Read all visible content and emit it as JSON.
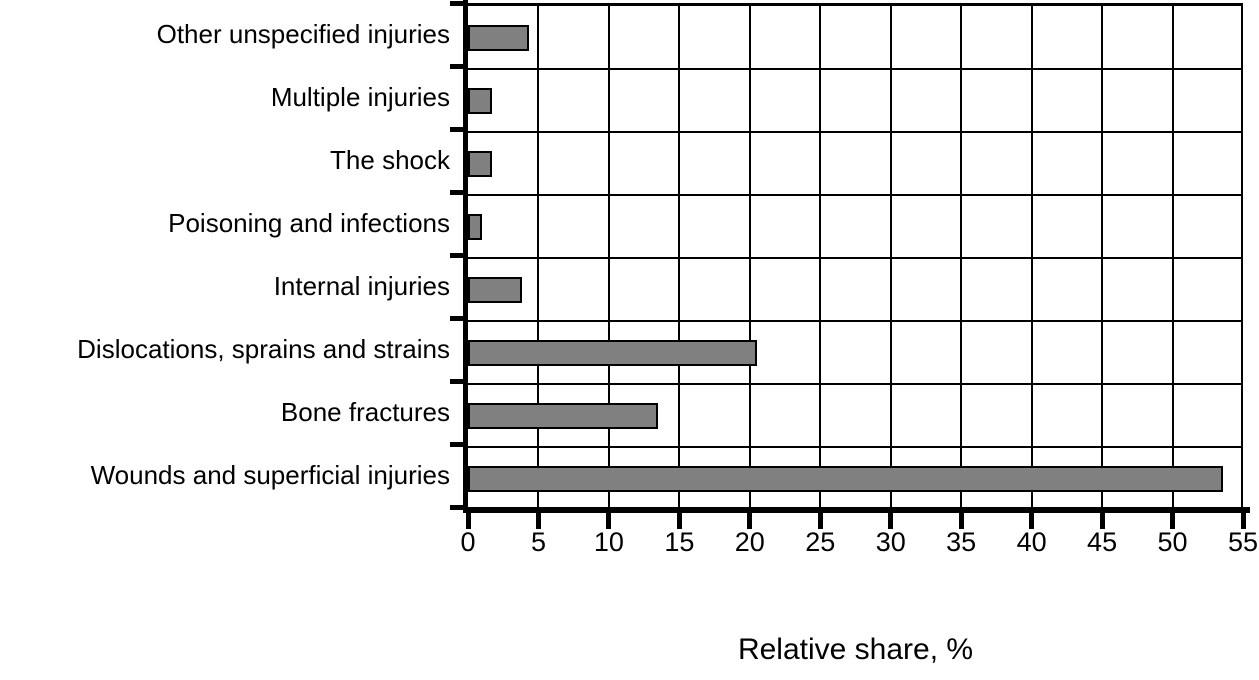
{
  "chart_data": {
    "type": "bar",
    "orientation": "horizontal",
    "title": "",
    "xlabel": "Relative share, %",
    "ylabel": "",
    "categories": [
      "Other unspecified injuries",
      "Multiple injuries",
      "The shock",
      "Poisoning and infections",
      "Internal injuries",
      "Dislocations, sprains and strains",
      "Bone fractures",
      "Wounds and superficial injuries"
    ],
    "values": [
      4.3,
      1.7,
      1.7,
      1.0,
      3.8,
      20.5,
      13.5,
      53.6
    ],
    "x_ticks": [
      0,
      5,
      10,
      15,
      20,
      25,
      30,
      35,
      40,
      45,
      50,
      55
    ],
    "xlim": [
      0,
      55
    ],
    "grid": true,
    "legend": false,
    "colors": {
      "bar_fill": "#808080",
      "bar_border": "#000000",
      "grid_line": "#000000",
      "axis_line": "#000000",
      "text": "#000000",
      "background": "#ffffff"
    }
  }
}
